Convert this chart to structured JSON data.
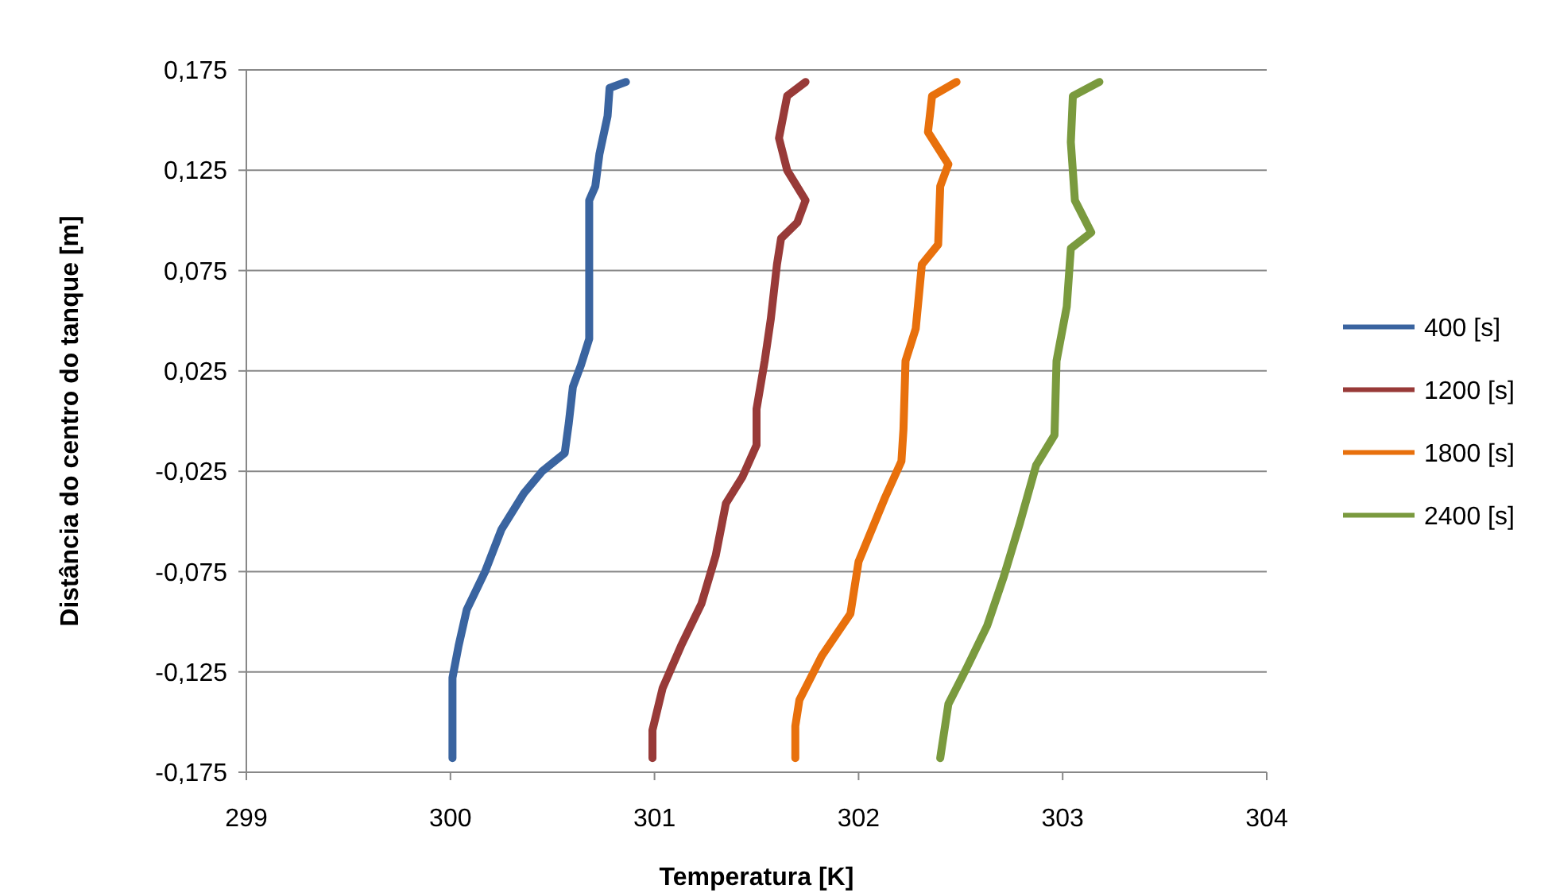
{
  "chart_data": {
    "type": "line",
    "xlabel": "Temperatura [K]",
    "ylabel": "Distância do centro do tanque [m]",
    "xlim": [
      299,
      304
    ],
    "xticks": [
      299,
      300,
      301,
      302,
      303,
      304
    ],
    "ylim": [
      -0.175,
      0.175
    ],
    "yticks": [
      {
        "value": -0.175,
        "label": "-0,175"
      },
      {
        "value": -0.125,
        "label": "-0,125"
      },
      {
        "value": -0.075,
        "label": "-0,075"
      },
      {
        "value": -0.025,
        "label": "-0,025"
      },
      {
        "value": 0.025,
        "label": "0,025"
      },
      {
        "value": 0.075,
        "label": "0,075"
      },
      {
        "value": 0.125,
        "label": "0,125"
      },
      {
        "value": 0.175,
        "label": "0,175"
      }
    ],
    "grid": "y",
    "legend": "right",
    "marker": "none",
    "line_style": "solid",
    "series": [
      {
        "name": "400 [s]",
        "color": "#3a64a0",
        "x": [
          300.86,
          300.78,
          300.77,
          300.73,
          300.71,
          300.68,
          300.68,
          300.68,
          300.64,
          300.6,
          300.58,
          300.56,
          300.45,
          300.36,
          300.25,
          300.17,
          300.08,
          300.04,
          300.01,
          300.01
        ],
        "values": [
          0.169,
          0.166,
          0.152,
          0.133,
          0.117,
          0.11,
          0.059,
          0.041,
          0.028,
          0.017,
          -0.001,
          -0.016,
          -0.025,
          -0.036,
          -0.054,
          -0.075,
          -0.094,
          -0.112,
          -0.128,
          -0.168
        ]
      },
      {
        "name": "1200 [s]",
        "color": "#983a38",
        "x": [
          301.74,
          301.65,
          301.61,
          301.65,
          301.74,
          301.7,
          301.62,
          301.6,
          301.57,
          301.54,
          301.5,
          301.5,
          301.43,
          301.35,
          301.3,
          301.23,
          301.13,
          301.04,
          300.99,
          300.99
        ],
        "values": [
          0.169,
          0.162,
          0.141,
          0.125,
          0.11,
          0.099,
          0.091,
          0.078,
          0.051,
          0.03,
          0.006,
          -0.012,
          -0.028,
          -0.041,
          -0.067,
          -0.091,
          -0.112,
          -0.133,
          -0.154,
          -0.168
        ]
      },
      {
        "name": "1800 [s]",
        "color": "#e8700c",
        "x": [
          302.48,
          302.36,
          302.34,
          302.44,
          302.4,
          302.39,
          302.31,
          302.28,
          302.23,
          302.22,
          302.21,
          302.13,
          302.0,
          301.96,
          301.82,
          301.71,
          301.69,
          301.69
        ],
        "values": [
          0.169,
          0.162,
          0.144,
          0.128,
          0.117,
          0.088,
          0.078,
          0.046,
          0.03,
          -0.004,
          -0.02,
          -0.038,
          -0.07,
          -0.096,
          -0.117,
          -0.139,
          -0.152,
          -0.168
        ]
      },
      {
        "name": "2400 [s]",
        "color": "#7a9a3e",
        "x": [
          303.18,
          303.05,
          303.04,
          303.06,
          303.14,
          303.04,
          303.02,
          302.97,
          302.96,
          302.87,
          302.79,
          302.71,
          302.63,
          302.53,
          302.44,
          302.4
        ],
        "values": [
          0.169,
          0.162,
          0.139,
          0.11,
          0.094,
          0.086,
          0.057,
          0.03,
          -0.007,
          -0.022,
          -0.051,
          -0.078,
          -0.102,
          -0.123,
          -0.141,
          -0.168
        ]
      }
    ]
  }
}
